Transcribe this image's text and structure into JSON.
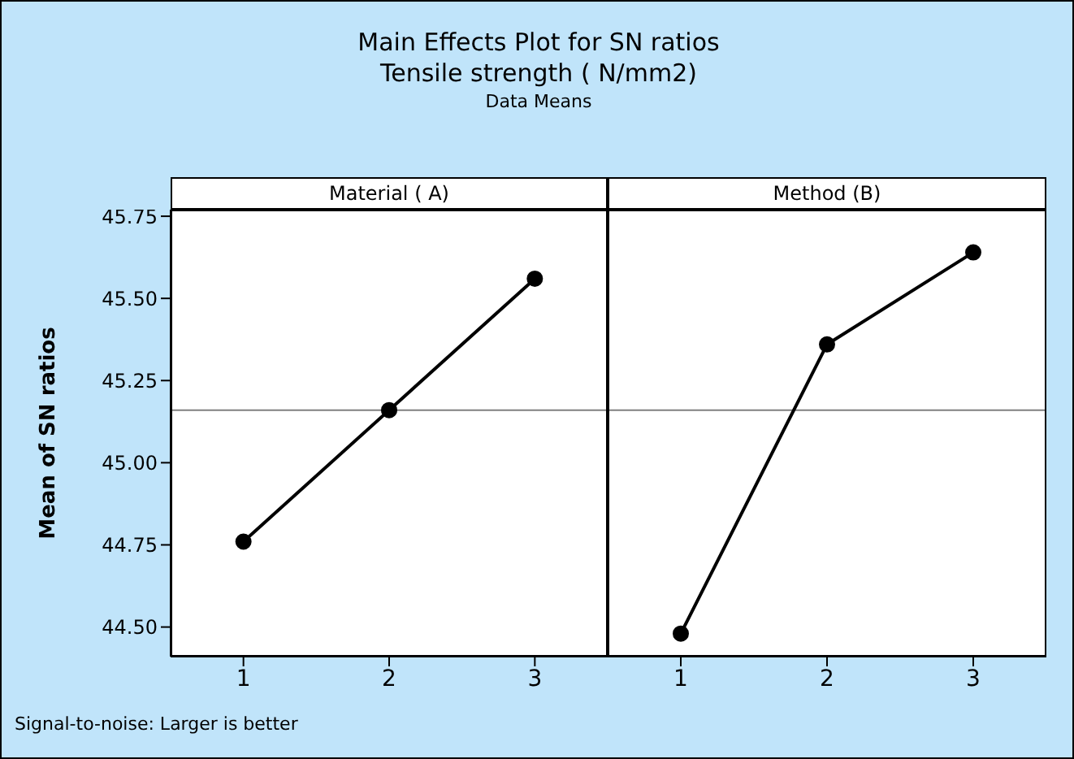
{
  "chart_data": [
    {
      "type": "line",
      "title": "Main Effects Plot for SN ratios",
      "subtitle": "Tensile strength ( N/mm2)",
      "annotations": [
        "Data Means",
        "Signal-to-noise: Larger is better"
      ],
      "xlabel": "Material ( A)",
      "ylabel": "Mean of SN ratios",
      "categories": [
        "1",
        "2",
        "3"
      ],
      "values": [
        44.76,
        45.16,
        45.56
      ],
      "color": "#000000",
      "ylim": [
        44.41,
        45.77
      ],
      "yticks": [
        {
          "value": 44.5,
          "label": "44.50"
        },
        44.75,
        {
          "value": 45.0,
          "label": "45.00"
        },
        45.25,
        {
          "value": 45.5,
          "label": "45.50"
        },
        45.75
      ],
      "ref_lines": [
        {
          "axis": "y",
          "value": 45.16,
          "color": "#808080"
        }
      ],
      "marker": "circle",
      "line_style": "solid",
      "grid": false,
      "legend": false
    },
    {
      "type": "line",
      "xlabel": "Method (B)",
      "categories": [
        "1",
        "2",
        "3"
      ],
      "values": [
        44.48,
        45.36,
        45.64
      ],
      "color": "#000000",
      "ylim": [
        44.41,
        45.77
      ],
      "ref_lines": [
        {
          "axis": "y",
          "value": 45.16,
          "color": "#808080"
        }
      ],
      "marker": "circle",
      "line_style": "solid",
      "grid": false,
      "legend": false,
      "tick_labels": "x"
    }
  ]
}
